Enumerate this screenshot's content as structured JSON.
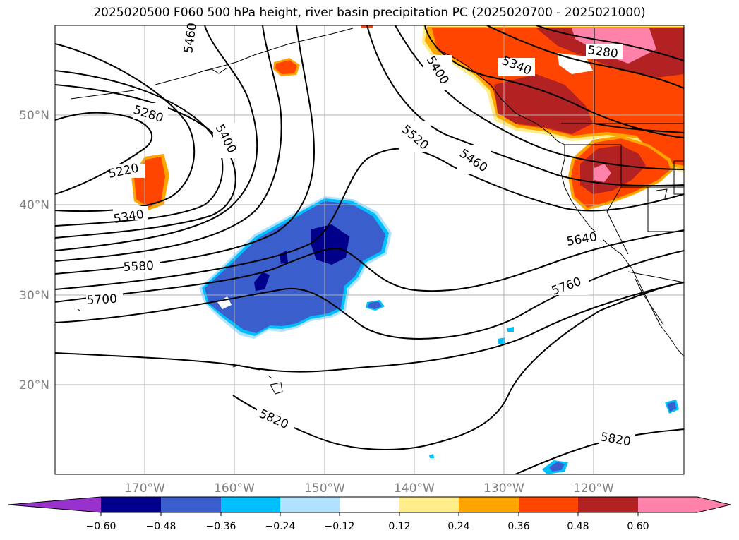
{
  "title": "2025020500 F060 500 hPa height, river basin precipitation PC (2025020700 - 2025021000)",
  "map": {
    "lat_labels": [
      "50°N",
      "40°N",
      "30°N",
      "20°N"
    ],
    "lon_labels": [
      "170°W",
      "160°W",
      "150°W",
      "140°W",
      "130°W",
      "120°W"
    ],
    "contour_labels": [
      "5460",
      "5280",
      "5400",
      "5220",
      "5340",
      "5400",
      "5340",
      "5280",
      "5520",
      "5460",
      "5580",
      "5700",
      "5640",
      "5760",
      "5820",
      "5820"
    ]
  },
  "colorbar": {
    "tick_labels": [
      "−0.60",
      "−0.48",
      "−0.36",
      "−0.24",
      "−0.12",
      "0.12",
      "0.24",
      "0.36",
      "0.48",
      "0.60"
    ],
    "colors": [
      "#9932cc",
      "#00008b",
      "#3a5fcd",
      "#00bfff",
      "#b0e2ff",
      "#ffffff",
      "#ffec8b",
      "#ffa500",
      "#ff4500",
      "#b22222",
      "#ff82ab",
      "#ff82ab"
    ]
  }
}
